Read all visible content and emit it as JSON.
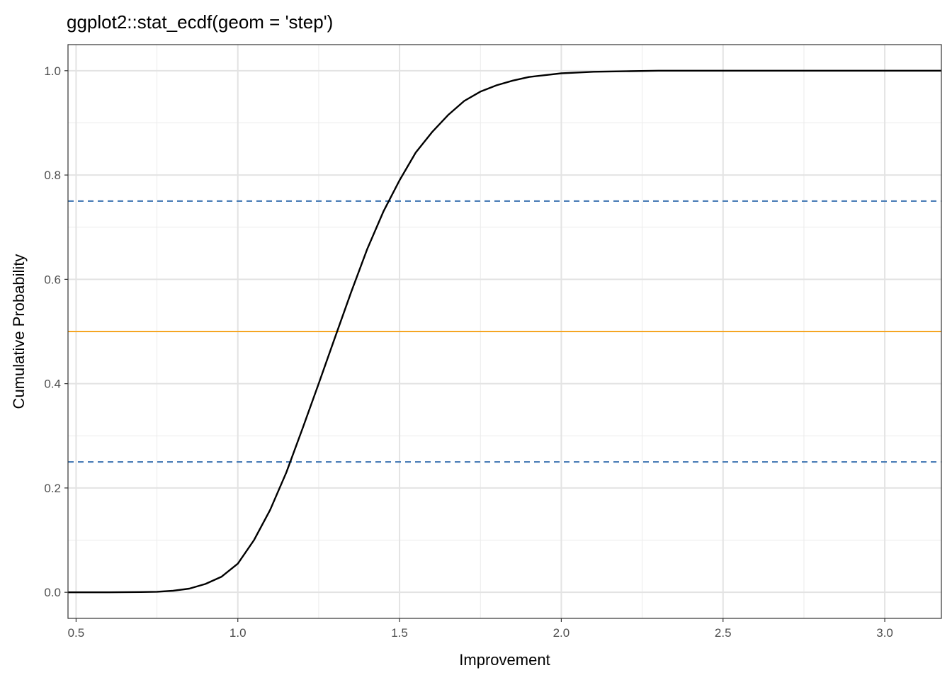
{
  "chart_data": {
    "type": "line",
    "title": "ggplot2::stat_ecdf(geom = 'step')",
    "xlabel": "Improvement",
    "ylabel": "Cumulative Probability",
    "xlim": [
      0.475,
      3.175
    ],
    "ylim": [
      -0.05,
      1.05
    ],
    "x_ticks": [
      0.5,
      1.0,
      1.5,
      2.0,
      2.5,
      3.0
    ],
    "x_tick_labels": [
      "0.5",
      "1.0",
      "1.5",
      "2.0",
      "2.5",
      "3.0"
    ],
    "y_ticks": [
      0.0,
      0.2,
      0.4,
      0.6,
      0.8,
      1.0
    ],
    "y_tick_labels": [
      "0.0",
      "0.2",
      "0.4",
      "0.6",
      "0.8",
      "1.0"
    ],
    "grid": true,
    "series": [
      {
        "color": "#000000",
        "x": [
          0.475,
          0.6,
          0.7,
          0.75,
          0.8,
          0.85,
          0.9,
          0.95,
          1.0,
          1.05,
          1.1,
          1.15,
          1.2,
          1.25,
          1.3,
          1.35,
          1.4,
          1.45,
          1.5,
          1.55,
          1.6,
          1.65,
          1.7,
          1.75,
          1.8,
          1.85,
          1.9,
          2.0,
          2.1,
          2.2,
          2.3,
          2.5,
          3.175
        ],
        "y": [
          0.0,
          0.0,
          0.0005,
          0.001,
          0.003,
          0.007,
          0.016,
          0.03,
          0.055,
          0.1,
          0.158,
          0.23,
          0.314,
          0.4,
          0.488,
          0.575,
          0.658,
          0.73,
          0.79,
          0.843,
          0.882,
          0.915,
          0.942,
          0.96,
          0.972,
          0.981,
          0.988,
          0.995,
          0.998,
          0.999,
          1.0,
          1.0,
          1.0
        ]
      }
    ],
    "reference_lines": [
      {
        "y": 0.5,
        "color": "#f5a623",
        "style": "solid"
      },
      {
        "y": 0.25,
        "color": "#3a72b0",
        "style": "dashed"
      },
      {
        "y": 0.75,
        "color": "#3a72b0",
        "style": "dashed"
      }
    ]
  }
}
